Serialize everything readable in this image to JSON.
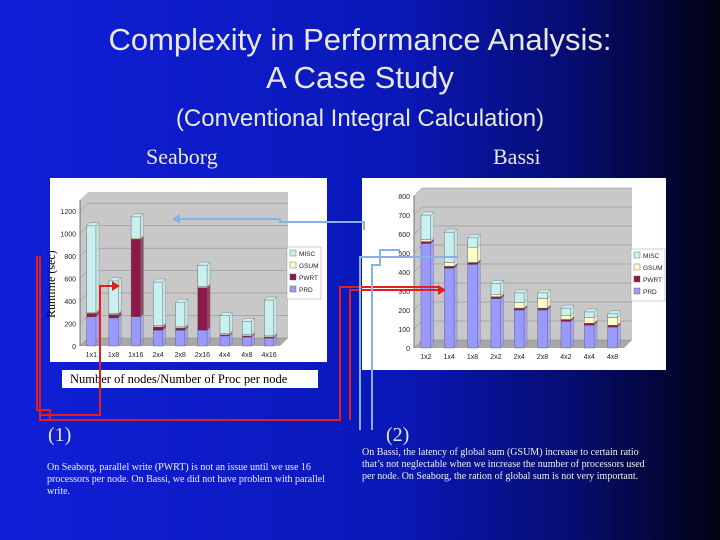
{
  "title": {
    "line1": "Complexity in Performance Analysis:",
    "line2": "A Case Study",
    "line3": "(Conventional Integral Calculation)"
  },
  "labels": {
    "seaborg": "Seaborg",
    "bassi": "Bassi",
    "ylabel": "Runtime (sec)",
    "xlabel": "Number of nodes/Number of Proc per node",
    "num1": "(1)",
    "num2": "(2)"
  },
  "notes": {
    "note1": "On Seaborg, parallel write (PWRT) is not an issue until we use 16 processors per node. On Bassi, we did not have problem with parallel write.",
    "note2": "On Bassi, the latency of global sum (GSUM) increase to certain ratio that’s not neglectable when we increase the number of processors used per node. On Seaborg, the ration of global sum is not very important."
  },
  "colors": {
    "misc": "#c8f0f0",
    "gsum": "#fffcc8",
    "pwrt": "#8b1a4a",
    "prd": "#9999ff",
    "arrow_red": "#e02020",
    "arrow_blue": "#8ab0e8"
  },
  "chart_data": [
    {
      "type": "bar",
      "stacked": true,
      "name": "Seaborg",
      "categories": [
        "1x1",
        "1x8",
        "1x16",
        "2x4",
        "2x8",
        "2x16",
        "4x4",
        "4x8",
        "4x16"
      ],
      "yticks": [
        0,
        200,
        400,
        600,
        800,
        1000,
        1200
      ],
      "ylim": [
        0,
        1300
      ],
      "legend": [
        "MISC",
        "GSUM",
        "PWRT",
        "PRD"
      ],
      "series": [
        {
          "name": "PRD",
          "values": [
            260,
            250,
            260,
            140,
            140,
            140,
            90,
            80,
            70
          ]
        },
        {
          "name": "PWRT",
          "values": [
            30,
            30,
            690,
            30,
            20,
            380,
            10,
            10,
            10
          ]
        },
        {
          "name": "GSUM",
          "values": [
            10,
            10,
            10,
            10,
            10,
            10,
            10,
            10,
            10
          ]
        },
        {
          "name": "MISC",
          "values": [
            770,
            290,
            190,
            390,
            220,
            190,
            160,
            120,
            320
          ]
        }
      ]
    },
    {
      "type": "bar",
      "stacked": true,
      "name": "Bassi",
      "categories": [
        "1x2",
        "1x4",
        "1x8",
        "2x2",
        "2x4",
        "2x8",
        "4x2",
        "4x4",
        "4x8"
      ],
      "yticks": [
        0,
        100,
        200,
        300,
        400,
        500,
        600,
        700,
        800
      ],
      "ylim": [
        0,
        800
      ],
      "legend": [
        "MISC",
        "GSUM",
        "PWRT",
        "PRD"
      ],
      "series": [
        {
          "name": "PRD",
          "values": [
            550,
            420,
            440,
            260,
            200,
            200,
            140,
            120,
            110
          ]
        },
        {
          "name": "PWRT",
          "values": [
            10,
            10,
            10,
            10,
            10,
            10,
            10,
            10,
            10
          ]
        },
        {
          "name": "GSUM",
          "values": [
            10,
            20,
            80,
            10,
            30,
            50,
            20,
            30,
            40
          ]
        },
        {
          "name": "MISC",
          "values": [
            130,
            160,
            50,
            60,
            50,
            30,
            40,
            30,
            20
          ]
        }
      ]
    }
  ]
}
